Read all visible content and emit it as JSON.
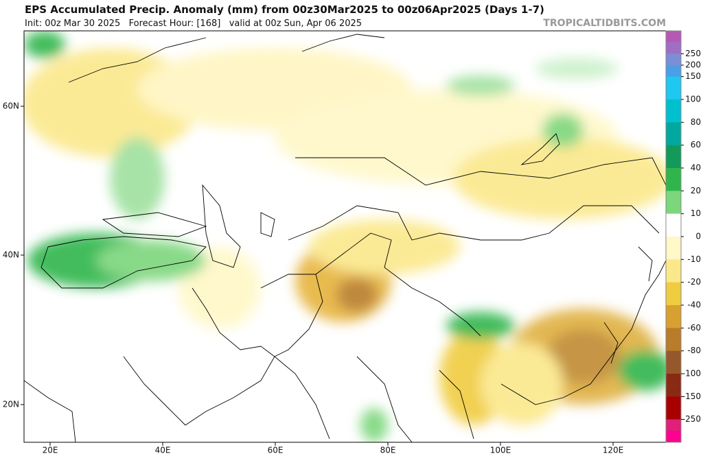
{
  "header": {
    "title": "EPS Accumulated Precip. Anomaly (mm) from 00z30Mar2025 to 00z06Apr2025 (Days 1-7)",
    "subtitle": "Init: 00z Mar 30 2025   Forecast Hour: [168]   valid at 00z Sun, Apr 06 2025",
    "watermark": "TROPICALTIDBITS.COM"
  },
  "map": {
    "lat_labels": [
      "60N",
      "40N",
      "20N"
    ],
    "lon_labels": [
      "20E",
      "40E",
      "60E",
      "80E",
      "100E",
      "120E"
    ]
  },
  "colorbar": {
    "labels": [
      "250",
      "200",
      "150",
      "100",
      "80",
      "60",
      "40",
      "20",
      "10",
      "0",
      "-10",
      "-20",
      "-40",
      "-60",
      "-80",
      "-100",
      "-150",
      "-250"
    ],
    "colors": [
      "#b45ab4",
      "#9f6fc6",
      "#7b8fd6",
      "#4aa0e6",
      "#1ec8f0",
      "#1ec8f0",
      "#00c0d0",
      "#00c0d0",
      "#00a8a0",
      "#00a8a0",
      "#139a5a",
      "#139a5a",
      "#2fb54c",
      "#2fb54c",
      "#7cd67c",
      "#7cd67c",
      "#ffffff",
      "#ffffff",
      "#fff8c8",
      "#fff8c8",
      "#fbe88a",
      "#fbe88a",
      "#f0cc40",
      "#f0cc40",
      "#d8a030",
      "#d8a030",
      "#b87c2a",
      "#b87c2a",
      "#96582a",
      "#96582a",
      "#8a2a14",
      "#8a2a14",
      "#a80000",
      "#a80000",
      "#e0207a",
      "#ff0090"
    ]
  }
}
